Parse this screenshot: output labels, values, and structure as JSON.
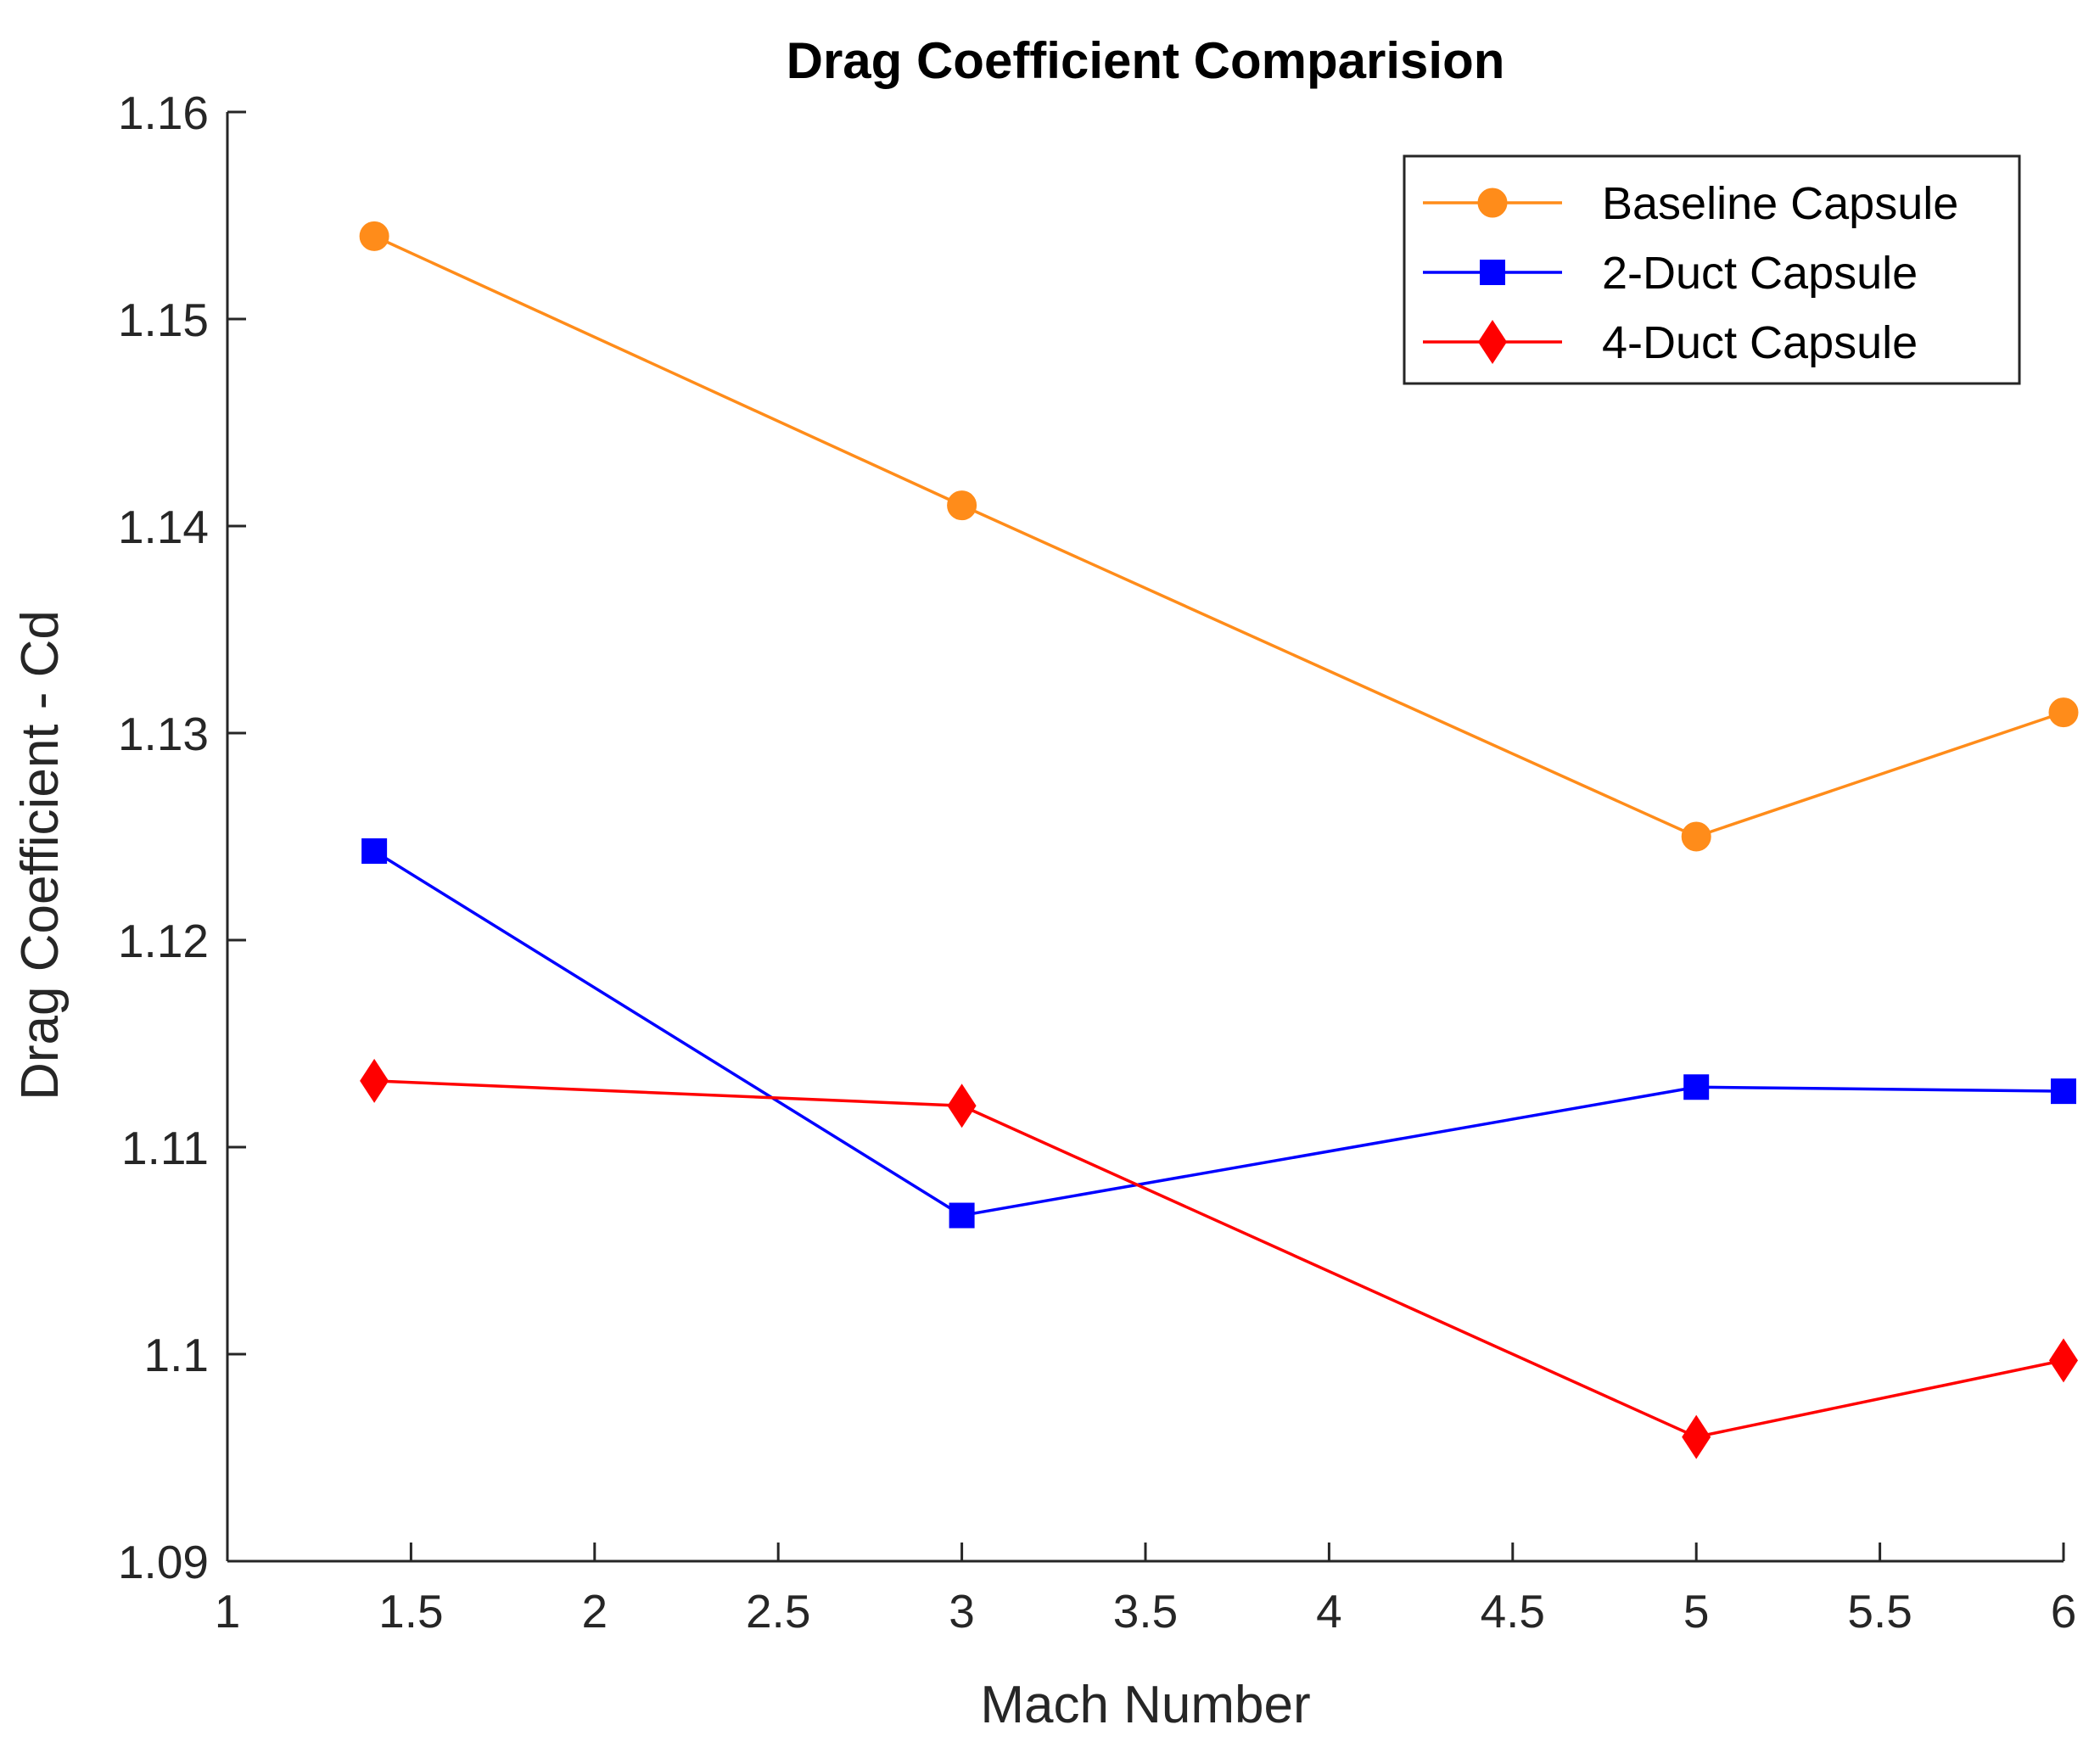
{
  "chart_data": {
    "type": "line",
    "title": "Drag Coefficient Comparision",
    "xlabel": "Mach Number",
    "ylabel": "Drag Coefficient - Cd",
    "xlim": [
      1,
      6
    ],
    "ylim": [
      1.09,
      1.16
    ],
    "xticks": [
      "1",
      "1.5",
      "2",
      "2.5",
      "3",
      "3.5",
      "4",
      "4.5",
      "5",
      "5.5",
      "6"
    ],
    "yticks": [
      "1.09",
      "1.1",
      "1.11",
      "1.12",
      "1.13",
      "1.14",
      "1.15",
      "1.16"
    ],
    "grid": false,
    "legend_position": "top-right",
    "x": [
      1.4,
      3,
      5,
      6
    ],
    "series": [
      {
        "name": "Baseline Capsule",
        "values": [
          1.154,
          1.141,
          1.125,
          1.131
        ],
        "color": "#FF8C1A",
        "marker": "circle"
      },
      {
        "name": "2-Duct Capsule",
        "values": [
          1.1243,
          1.1067,
          1.1129,
          1.1127
        ],
        "color": "#0000FF",
        "marker": "square"
      },
      {
        "name": "4-Duct Capsule",
        "values": [
          1.1132,
          1.112,
          1.096,
          1.0997
        ],
        "color": "#FF0000",
        "marker": "diamond"
      }
    ]
  }
}
